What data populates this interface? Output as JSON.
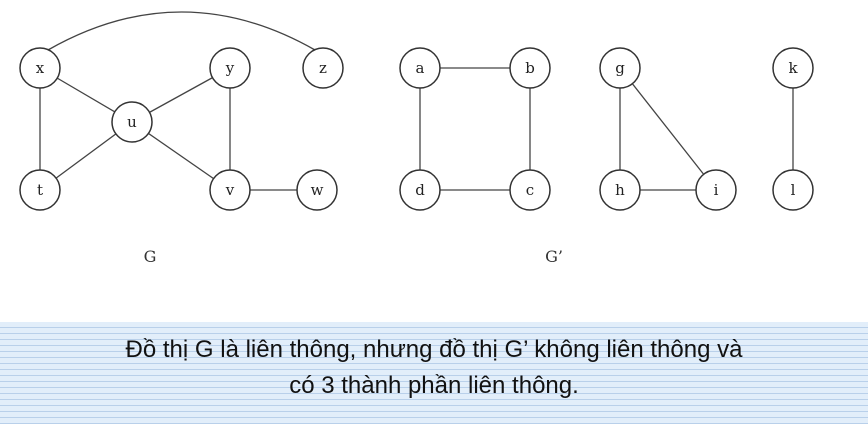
{
  "graph_g": {
    "label": "G",
    "nodes": [
      "x",
      "y",
      "z",
      "u",
      "t",
      "v",
      "w"
    ],
    "edges": [
      [
        "x",
        "z"
      ],
      [
        "x",
        "t"
      ],
      [
        "x",
        "u"
      ],
      [
        "y",
        "u"
      ],
      [
        "y",
        "v"
      ],
      [
        "u",
        "t"
      ],
      [
        "u",
        "v"
      ],
      [
        "v",
        "w"
      ]
    ]
  },
  "graph_g_prime": {
    "label": "G’",
    "nodes": [
      "a",
      "b",
      "c",
      "d",
      "g",
      "h",
      "i",
      "k",
      "l"
    ],
    "edges": [
      [
        "a",
        "b"
      ],
      [
        "a",
        "d"
      ],
      [
        "b",
        "c"
      ],
      [
        "d",
        "c"
      ],
      [
        "g",
        "h"
      ],
      [
        "g",
        "i"
      ],
      [
        "h",
        "i"
      ],
      [
        "k",
        "l"
      ]
    ]
  },
  "caption": {
    "line1": "Đồ thị G là liên thông, nhưng đồ thị G’ không liên thông và",
    "line2": "có 3 thành phần liên thông."
  }
}
